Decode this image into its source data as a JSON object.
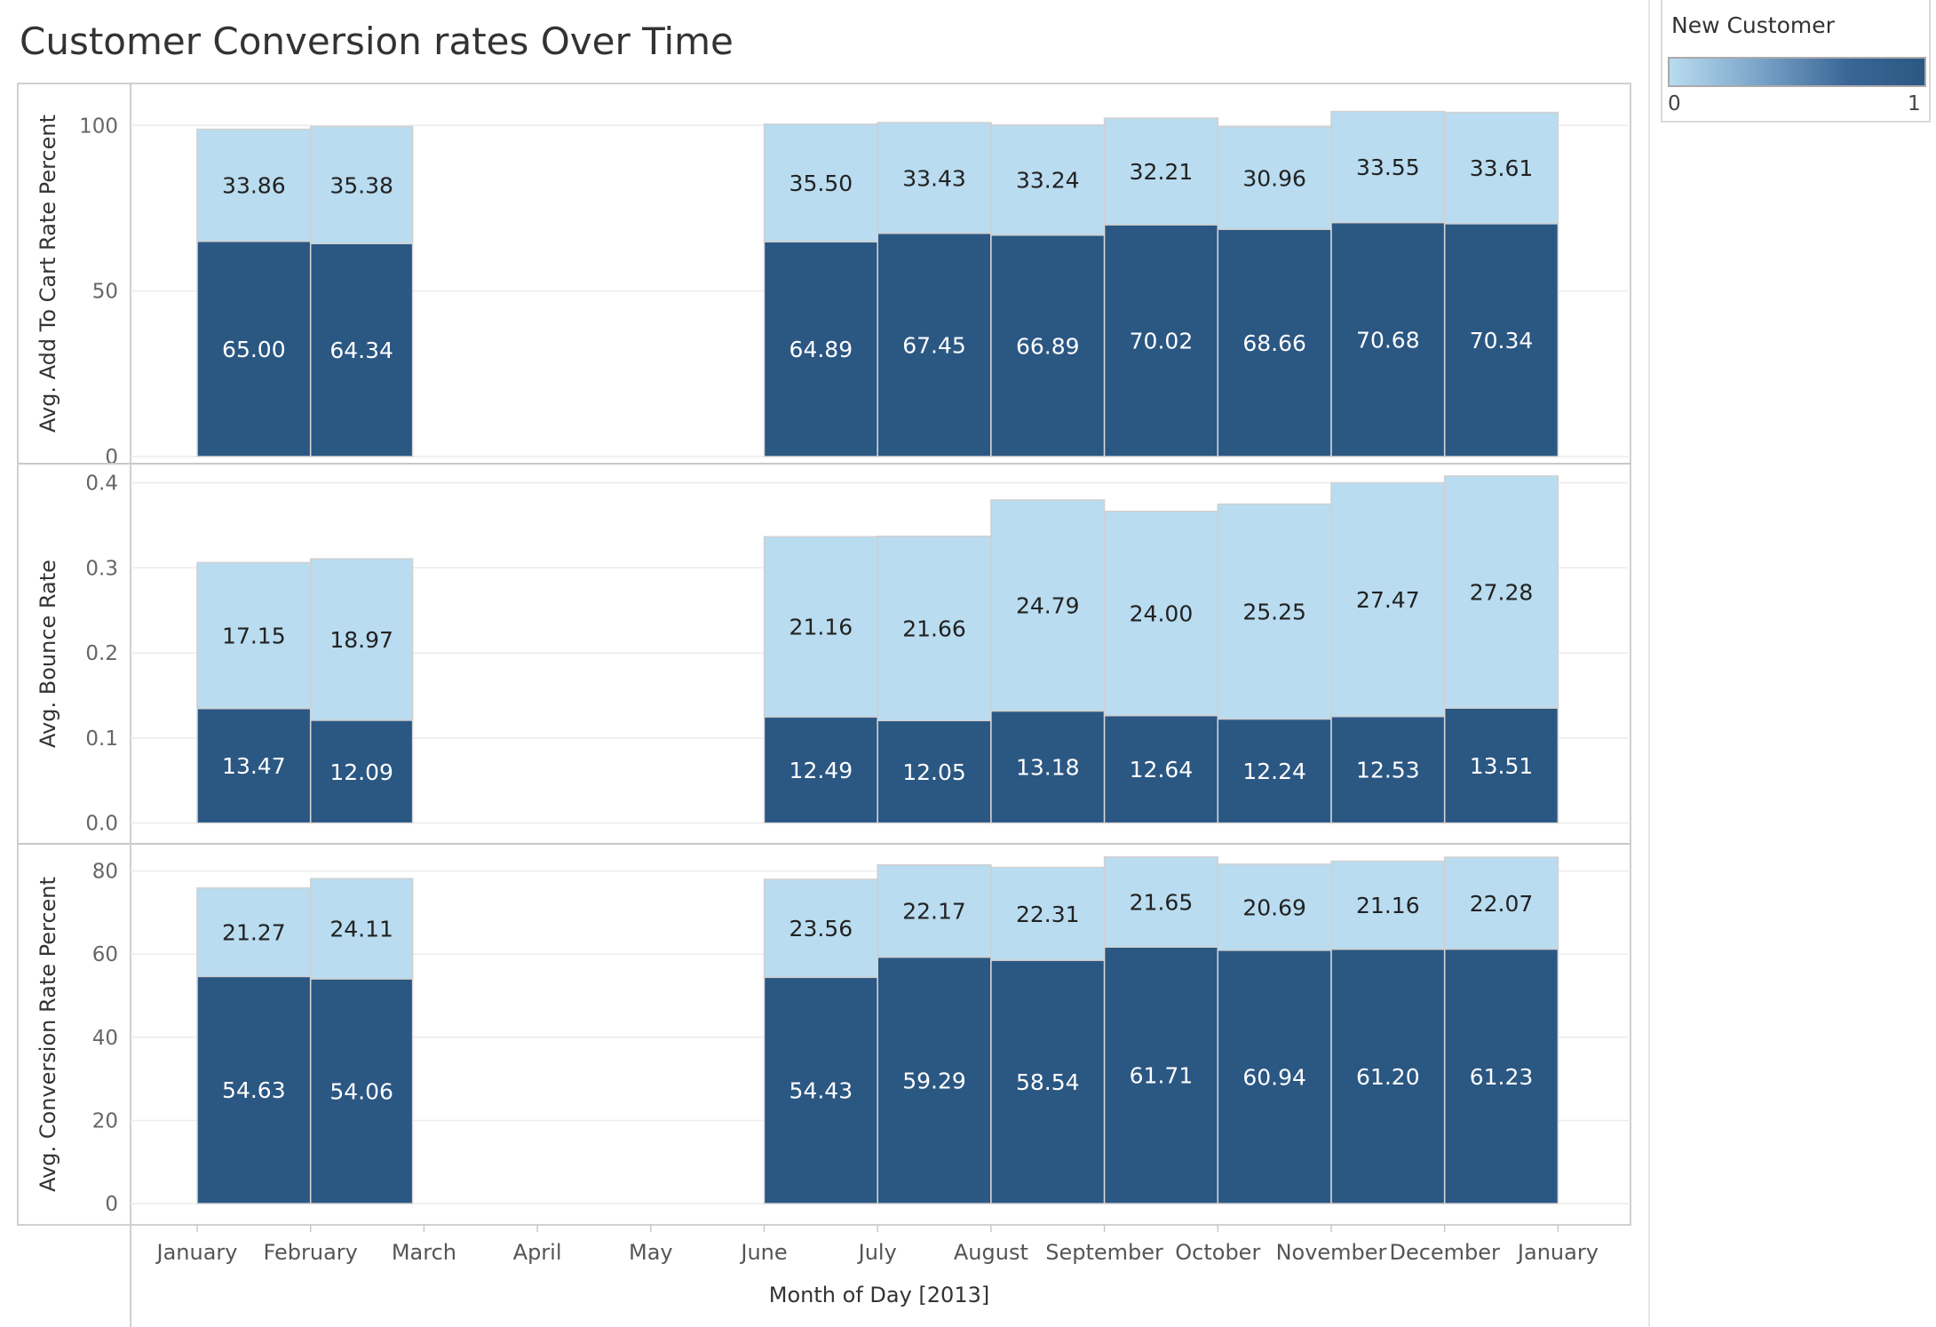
{
  "title": "Customer Conversion rates Over Time",
  "legend": {
    "title": "New Customer",
    "min_label": "0",
    "max_label": "1",
    "color_low": "#b9dcf0",
    "color_high": "#2b5783"
  },
  "chart_data": {
    "type": "bar",
    "stacked": true,
    "xlabel": "Month of Day [2013]",
    "x_tick_labels": [
      "January",
      "February",
      "March",
      "April",
      "May",
      "June",
      "July",
      "August",
      "September",
      "October",
      "November",
      "December",
      "January"
    ],
    "categories": [
      "January",
      "February",
      "June",
      "July",
      "August",
      "September",
      "October",
      "November",
      "December"
    ],
    "bar_spans": [
      [
        0,
        1
      ],
      [
        1,
        1.9
      ],
      [
        5,
        6
      ],
      [
        6,
        7
      ],
      [
        7,
        8
      ],
      [
        8,
        9
      ],
      [
        9,
        10
      ],
      [
        10,
        11
      ],
      [
        11,
        12
      ]
    ],
    "grid": true,
    "panels": [
      {
        "ylabel": "Avg. Add To Cart Rate Percent",
        "ylim": [
          0,
          110
        ],
        "yticks": [
          0,
          50,
          100
        ],
        "ytick_labels": [
          "0",
          "50",
          "100"
        ],
        "series": [
          {
            "name": "1",
            "color": "#2b5783",
            "values": [
              65.0,
              64.34,
              64.89,
              67.45,
              66.89,
              70.02,
              68.66,
              70.68,
              70.34
            ],
            "labels": [
              "65.00",
              "64.34",
              "64.89",
              "67.45",
              "66.89",
              "70.02",
              "68.66",
              "70.68",
              "70.34"
            ]
          },
          {
            "name": "0",
            "color": "#b9dcf0",
            "values": [
              33.86,
              35.38,
              35.5,
              33.43,
              33.24,
              32.21,
              30.96,
              33.55,
              33.61
            ],
            "labels": [
              "33.86",
              "35.38",
              "35.50",
              "33.43",
              "33.24",
              "32.21",
              "30.96",
              "33.55",
              "33.61"
            ]
          }
        ]
      },
      {
        "ylabel": "Avg. Bounce Rate",
        "ylim": [
          -0.016,
          0.412
        ],
        "yticks": [
          0.0,
          0.1,
          0.2,
          0.3,
          0.4
        ],
        "ytick_labels": [
          "0.0",
          "0.1",
          "0.2",
          "0.3",
          "0.4"
        ],
        "series": [
          {
            "name": "1",
            "color": "#2b5783",
            "values": [
              0.1347,
              0.1209,
              0.1249,
              0.1205,
              0.1318,
              0.1264,
              0.1224,
              0.1253,
              0.1351
            ],
            "labels": [
              "13.47",
              "12.09",
              "12.49",
              "12.05",
              "13.18",
              "12.64",
              "12.24",
              "12.53",
              "13.51"
            ]
          },
          {
            "name": "0",
            "color": "#b9dcf0",
            "values": [
              0.1715,
              0.1897,
              0.2116,
              0.2166,
              0.2479,
              0.24,
              0.2525,
              0.2747,
              0.2728
            ],
            "labels": [
              "17.15",
              "18.97",
              "21.16",
              "21.66",
              "24.79",
              "24.00",
              "25.25",
              "27.47",
              "27.28"
            ]
          }
        ]
      },
      {
        "ylabel": "Avg. Conversion Rate Percent",
        "ylim": [
          -3.4,
          84.4
        ],
        "yticks": [
          0,
          20,
          40,
          60,
          80
        ],
        "ytick_labels": [
          "0",
          "20",
          "40",
          "60",
          "80"
        ],
        "series": [
          {
            "name": "1",
            "color": "#2b5783",
            "values": [
              54.63,
              54.06,
              54.43,
              59.29,
              58.54,
              61.71,
              60.94,
              61.2,
              61.23
            ],
            "labels": [
              "54.63",
              "54.06",
              "54.43",
              "59.29",
              "58.54",
              "61.71",
              "60.94",
              "61.20",
              "61.23"
            ]
          },
          {
            "name": "0",
            "color": "#b9dcf0",
            "values": [
              21.27,
              24.11,
              23.56,
              22.17,
              22.31,
              21.65,
              20.69,
              21.16,
              22.07
            ],
            "labels": [
              "21.27",
              "24.11",
              "23.56",
              "22.17",
              "22.31",
              "21.65",
              "20.69",
              "21.16",
              "22.07"
            ]
          }
        ]
      }
    ]
  }
}
